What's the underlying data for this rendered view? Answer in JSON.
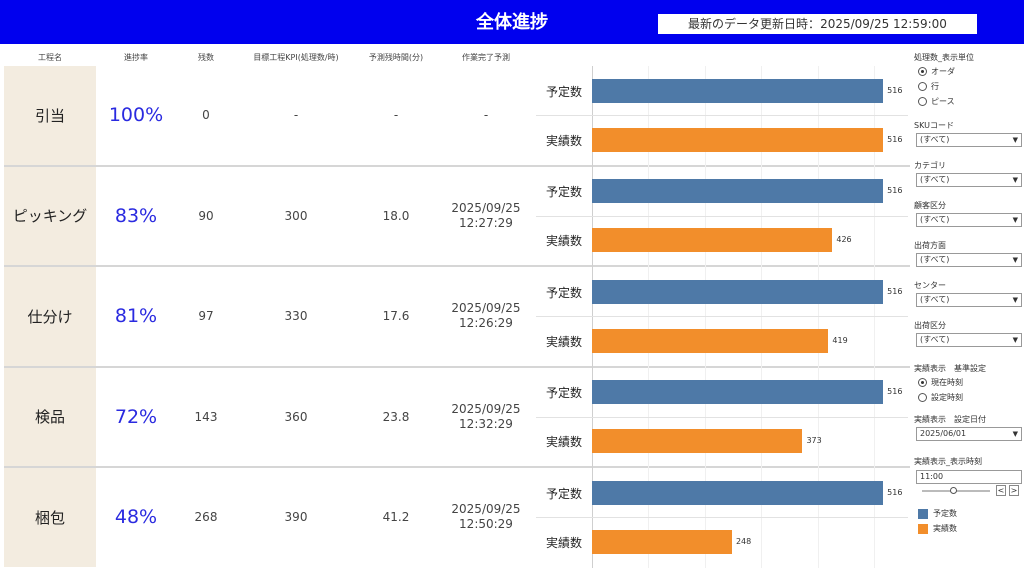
{
  "header": {
    "title": "全体進捗",
    "last_update_label": "最新のデータ更新日時：",
    "last_update_value": "2025/09/25 12:59:00"
  },
  "columns": {
    "process": "工程名",
    "rate": "進捗率",
    "remaining": "残数",
    "kpi": "目標工程KPI(処理数/時)",
    "est_time": "予測残時間(分)",
    "eta": "作業完了予測"
  },
  "bar_labels": {
    "plan": "予定数",
    "actual": "実績数"
  },
  "colors": {
    "plan": "#4e79a7",
    "actual": "#f28e2b",
    "header": "#0000ee",
    "rate_text": "#2a2ae0",
    "name_bg": "#f3ece0"
  },
  "rows": [
    {
      "name": "引当",
      "rate": "100%",
      "remaining": "0",
      "kpi": "-",
      "est_time": "-",
      "eta_date": "-",
      "eta_time": ""
    },
    {
      "name": "ピッキング",
      "rate": "83%",
      "remaining": "90",
      "kpi": "300",
      "est_time": "18.0",
      "eta_date": "2025/09/25",
      "eta_time": "12:27:29"
    },
    {
      "name": "仕分け",
      "rate": "81%",
      "remaining": "97",
      "kpi": "330",
      "est_time": "17.6",
      "eta_date": "2025/09/25",
      "eta_time": "12:26:29"
    },
    {
      "name": "検品",
      "rate": "72%",
      "remaining": "143",
      "kpi": "360",
      "est_time": "23.8",
      "eta_date": "2025/09/25",
      "eta_time": "12:32:29"
    },
    {
      "name": "梱包",
      "rate": "48%",
      "remaining": "268",
      "kpi": "390",
      "est_time": "41.2",
      "eta_date": "2025/09/25",
      "eta_time": "12:50:29"
    }
  ],
  "chart_data": {
    "type": "bar",
    "orientation": "horizontal",
    "categories": [
      "引当",
      "ピッキング",
      "仕分け",
      "検品",
      "梱包"
    ],
    "series": [
      {
        "name": "予定数",
        "values": [
          516,
          516,
          516,
          516,
          516
        ]
      },
      {
        "name": "実績数",
        "values": [
          516,
          426,
          419,
          373,
          248
        ]
      }
    ],
    "xlim": [
      0,
      560
    ],
    "grid": true
  },
  "sidebar": {
    "unit_title": "処理数_表示単位",
    "unit_options": [
      {
        "label": "オーダ",
        "selected": true
      },
      {
        "label": "行",
        "selected": false
      },
      {
        "label": "ピース",
        "selected": false
      }
    ],
    "filters": [
      {
        "label": "SKUコード",
        "value": "(すべて)"
      },
      {
        "label": "カテゴリ",
        "value": "(すべて)"
      },
      {
        "label": "顧客区分",
        "value": "(すべて)"
      },
      {
        "label": "出荷方面",
        "value": "(すべて)"
      },
      {
        "label": "センター",
        "value": "(すべて)"
      },
      {
        "label": "出荷区分",
        "value": "(すべて)"
      }
    ],
    "basis_title": "実績表示　基準設定",
    "basis_options": [
      {
        "label": "現在時刻",
        "selected": true
      },
      {
        "label": "設定時刻",
        "selected": false
      }
    ],
    "date_title": "実績表示　設定日付",
    "date_value": "2025/06/01",
    "time_title": "実績表示_表示時刻",
    "time_value": "11:00",
    "step_prev": "<",
    "step_next": ">",
    "legend": [
      {
        "label": "予定数"
      },
      {
        "label": "実績数"
      }
    ]
  }
}
